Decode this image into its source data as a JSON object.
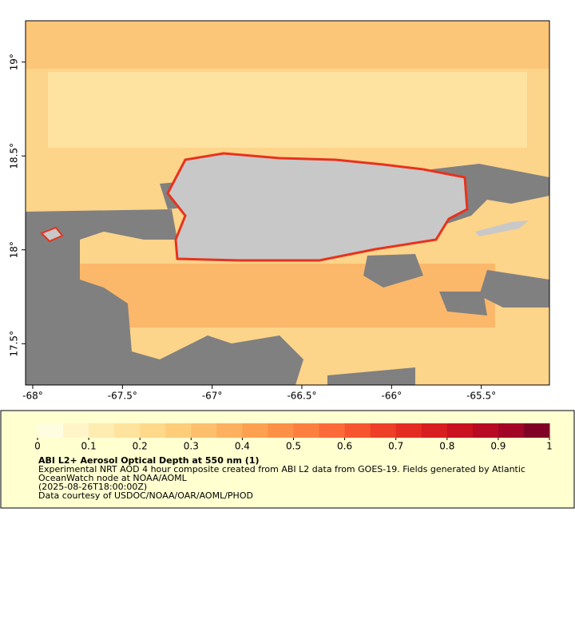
{
  "map": {
    "xlim": [
      -68.04,
      -65.12
    ],
    "ylim": [
      17.28,
      19.22
    ],
    "xticks": [
      {
        "value": -68,
        "label": "-68°"
      },
      {
        "value": -67.5,
        "label": "-67.5°"
      },
      {
        "value": -67,
        "label": "-67°"
      },
      {
        "value": -66.5,
        "label": "-66.5°"
      },
      {
        "value": -66,
        "label": "-66°"
      },
      {
        "value": -65.5,
        "label": "-65.5°"
      }
    ],
    "yticks": [
      {
        "value": 17.5,
        "label": "17.5°"
      },
      {
        "value": 18,
        "label": "18°"
      },
      {
        "value": 18.5,
        "label": "18.5°"
      },
      {
        "value": 19,
        "label": "19°"
      }
    ]
  },
  "colorbar": {
    "range": [
      0,
      1
    ],
    "ticks": [
      0,
      0.1,
      0.2,
      0.3,
      0.4,
      0.5,
      0.6,
      0.7,
      0.8,
      0.9,
      1
    ],
    "colors": [
      "#fffde0",
      "#fff5c8",
      "#feecb0",
      "#fee39e",
      "#fed98a",
      "#fdcd7a",
      "#fdbf6c",
      "#fdb05e",
      "#fda050",
      "#fc9047",
      "#fc7f3f",
      "#fb6a38",
      "#f65530",
      "#ee4028",
      "#e42d22",
      "#d81e20",
      "#c9111f",
      "#b80a22",
      "#a30526",
      "#800026"
    ]
  },
  "caption": {
    "title": "ABI L2+ Aerosol Optical Depth at 550 nm (1)",
    "description": "Experimental NRT AOD 4 hour composite created from ABI L2 data from GOES-19. Fields generated by Atlantic OceanWatch node at NOAA/AOML",
    "timestamp": "(2025-08-26T18:00:00Z)",
    "credit": "Data courtesy of USDOC/NOAA/OAR/AOML/PHOD"
  }
}
